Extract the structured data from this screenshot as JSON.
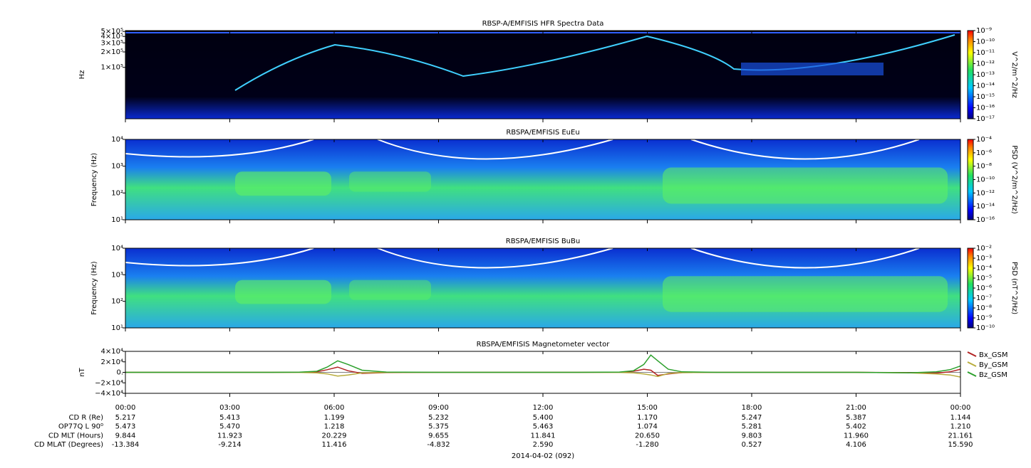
{
  "chart_data": [
    {
      "type": "spectrogram",
      "title": "RBSP-A/EMFISIS  HFR Spectra Data",
      "ylabel": "Hz",
      "ylog": true,
      "ylim": [
        10000,
        520000
      ],
      "yticks": [
        {
          "value": 100000,
          "label": "1×10⁵"
        },
        {
          "value": 200000,
          "label": "2×10⁵"
        },
        {
          "value": 300000,
          "label": "3×10⁵"
        },
        {
          "value": 400000,
          "label": "4×10⁵"
        },
        {
          "value": 500000,
          "label": "5×10⁵"
        }
      ],
      "xlim": [
        0,
        24
      ],
      "colorbar_label": "V^2/m^2/Hz",
      "clim": [
        1e-17,
        1e-09
      ],
      "cticks": [
        {
          "value": 1e-09,
          "label": "10⁻⁹"
        },
        {
          "value": 1e-10,
          "label": "10⁻¹⁰"
        },
        {
          "value": 1e-11,
          "label": "10⁻¹¹"
        },
        {
          "value": 1e-12,
          "label": "10⁻¹²"
        },
        {
          "value": 1e-13,
          "label": "10⁻¹³"
        },
        {
          "value": 1e-14,
          "label": "10⁻¹⁴"
        },
        {
          "value": 1e-15,
          "label": "10⁻¹⁵"
        },
        {
          "value": 1e-16,
          "label": "10⁻¹⁶"
        },
        {
          "value": 1e-17,
          "label": "10⁻¹⁷"
        }
      ]
    },
    {
      "type": "spectrogram",
      "title": "RBSPA/EMFISIS  EuEu",
      "ylabel": "Frequency (Hz)",
      "ylog": true,
      "ylim": [
        10,
        10000
      ],
      "yticks": [
        {
          "value": 10,
          "label": "10¹"
        },
        {
          "value": 100,
          "label": "10²"
        },
        {
          "value": 1000,
          "label": "10³"
        },
        {
          "value": 10000,
          "label": "10⁴"
        }
      ],
      "xlim": [
        0,
        24
      ],
      "colorbar_label": "PSD (V^2/m^2/Hz)",
      "clim": [
        1e-16,
        0.0001
      ],
      "cticks": [
        {
          "value": 0.0001,
          "label": "10⁻⁴"
        },
        {
          "value": 1e-06,
          "label": "10⁻⁶"
        },
        {
          "value": 1e-08,
          "label": "10⁻⁸"
        },
        {
          "value": 1e-10,
          "label": "10⁻¹⁰"
        },
        {
          "value": 1e-12,
          "label": "10⁻¹²"
        },
        {
          "value": 1e-14,
          "label": "10⁻¹⁴"
        },
        {
          "value": 1e-16,
          "label": "10⁻¹⁶"
        }
      ]
    },
    {
      "type": "spectrogram",
      "title": "RBSPA/EMFISIS  BuBu",
      "ylabel": "Frequency (Hz)",
      "ylog": true,
      "ylim": [
        10,
        10000
      ],
      "yticks": [
        {
          "value": 10,
          "label": "10¹"
        },
        {
          "value": 100,
          "label": "10²"
        },
        {
          "value": 1000,
          "label": "10³"
        },
        {
          "value": 10000,
          "label": "10⁴"
        }
      ],
      "xlim": [
        0,
        24
      ],
      "colorbar_label": "PSD (nT^2/Hz)",
      "clim": [
        1e-10,
        0.01
      ],
      "cticks": [
        {
          "value": 0.01,
          "label": "10⁻²"
        },
        {
          "value": 0.001,
          "label": "10⁻³"
        },
        {
          "value": 0.0001,
          "label": "10⁻⁴"
        },
        {
          "value": 1e-05,
          "label": "10⁻⁵"
        },
        {
          "value": 1e-06,
          "label": "10⁻⁶"
        },
        {
          "value": 1e-07,
          "label": "10⁻⁷"
        },
        {
          "value": 1e-08,
          "label": "10⁻⁸"
        },
        {
          "value": 1e-09,
          "label": "10⁻⁹"
        },
        {
          "value": 1e-10,
          "label": "10⁻¹⁰"
        }
      ]
    },
    {
      "type": "line",
      "title": "RBSPA/EMFISIS  Magnetometer vector",
      "ylabel": "nT",
      "ylim": [
        -40000,
        40000
      ],
      "yticks": [
        {
          "value": -40000,
          "label": "−4×10⁴"
        },
        {
          "value": -20000,
          "label": "−2×10⁴"
        },
        {
          "value": 0,
          "label": "0."
        },
        {
          "value": 20000,
          "label": "2×10⁴"
        },
        {
          "value": 40000,
          "label": "4×10⁴"
        }
      ],
      "xlim": [
        0,
        24
      ],
      "xticks": [
        {
          "value": 0,
          "label": "00:00"
        },
        {
          "value": 3,
          "label": "03:00"
        },
        {
          "value": 6,
          "label": "06:00"
        },
        {
          "value": 9,
          "label": "09:00"
        },
        {
          "value": 12,
          "label": "12:00"
        },
        {
          "value": 15,
          "label": "15:00"
        },
        {
          "value": 18,
          "label": "18:00"
        },
        {
          "value": 21,
          "label": "21:00"
        },
        {
          "value": 24,
          "label": "00:00"
        }
      ],
      "x": [
        0,
        4,
        5,
        5.5,
        5.8,
        6.1,
        6.4,
        6.8,
        7.5,
        9,
        13,
        14.2,
        14.6,
        14.9,
        15.1,
        15.3,
        15.6,
        16,
        17,
        21,
        22.5,
        23.3,
        23.7,
        24
      ],
      "series": [
        {
          "name": "Bx_GSM",
          "color": "#b22222",
          "values": [
            0,
            0,
            200,
            1000,
            5000,
            10000,
            3000,
            -2000,
            -500,
            0,
            0,
            200,
            2000,
            6000,
            4000,
            -6000,
            -3000,
            -500,
            0,
            0,
            -500,
            -1500,
            1000,
            6000
          ]
        },
        {
          "name": "By_GSM",
          "color": "#b8ac3c",
          "values": [
            0,
            0,
            -100,
            -1000,
            -3000,
            -7000,
            -5000,
            -1000,
            -200,
            0,
            0,
            -200,
            -1000,
            -3000,
            -5000,
            -8000,
            -2000,
            -500,
            0,
            0,
            -800,
            -3000,
            -5000,
            -9000
          ]
        },
        {
          "name": "Bz_GSM",
          "color": "#2ca02c",
          "values": [
            0,
            0,
            300,
            2000,
            10000,
            22000,
            15000,
            4000,
            500,
            0,
            0,
            500,
            3000,
            15000,
            33000,
            22000,
            6000,
            1000,
            0,
            0,
            -1000,
            1000,
            5000,
            12000
          ]
        }
      ]
    }
  ],
  "ephemeris": {
    "rows": [
      {
        "label": "CD R (Re)",
        "values": [
          "5.217",
          "5.413",
          "1.199",
          "5.232",
          "5.400",
          "1.170",
          "5.247",
          "5.387",
          "1.144"
        ]
      },
      {
        "label": "OP77Q L 90⁰",
        "values": [
          "5.473",
          "5.470",
          "1.218",
          "5.375",
          "5.463",
          "1.074",
          "5.281",
          "5.402",
          "1.210"
        ]
      },
      {
        "label": "CD MLT (Hours)",
        "values": [
          "9.844",
          "11.923",
          "20.229",
          "9.655",
          "11.841",
          "20.650",
          "9.803",
          "11.960",
          "21.161"
        ]
      },
      {
        "label": "CD MLAT (Degrees)",
        "values": [
          "-13.384",
          "-9.214",
          "11.416",
          "-4.832",
          "2.590",
          "-1.280",
          "0.527",
          "4.106",
          "15.590"
        ]
      }
    ],
    "date": "2014-04-02 (092)"
  }
}
